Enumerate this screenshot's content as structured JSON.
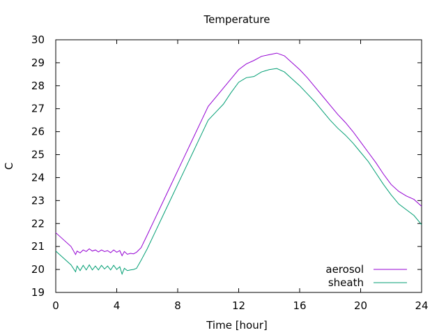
{
  "chart_data": {
    "type": "line",
    "title": "Temperature",
    "xlabel": "Time [hour]",
    "ylabel": "C",
    "xlim": [
      0,
      24
    ],
    "ylim": [
      19,
      30
    ],
    "xticks": [
      0,
      4,
      8,
      12,
      16,
      20,
      24
    ],
    "yticks": [
      19,
      20,
      21,
      22,
      23,
      24,
      25,
      26,
      27,
      28,
      29,
      30
    ],
    "grid": false,
    "legend_position": "bottom-right",
    "series": [
      {
        "name": "aerosol",
        "color": "#9400d3",
        "x": [
          0,
          0.5,
          1,
          1.3,
          1.4,
          1.6,
          1.8,
          2.0,
          2.2,
          2.4,
          2.6,
          2.8,
          3.0,
          3.2,
          3.4,
          3.6,
          3.8,
          4.0,
          4.2,
          4.35,
          4.5,
          4.7,
          4.9,
          5.1,
          5.3,
          5.6,
          6.0,
          6.5,
          7.0,
          7.5,
          8.0,
          8.5,
          9.0,
          9.5,
          10.0,
          10.5,
          11.0,
          11.5,
          12.0,
          12.5,
          13.0,
          13.5,
          14.0,
          14.5,
          15.0,
          15.5,
          16.0,
          16.5,
          17.0,
          17.5,
          18.0,
          18.5,
          19.0,
          19.5,
          20.0,
          20.5,
          21.0,
          21.5,
          22.0,
          22.5,
          23.0,
          23.5,
          24.0
        ],
        "y": [
          21.6,
          21.3,
          21.0,
          20.65,
          20.8,
          20.72,
          20.85,
          20.78,
          20.9,
          20.8,
          20.85,
          20.76,
          20.85,
          20.78,
          20.82,
          20.73,
          20.85,
          20.75,
          20.82,
          20.6,
          20.78,
          20.66,
          20.7,
          20.68,
          20.75,
          20.95,
          21.5,
          22.2,
          22.9,
          23.6,
          24.3,
          25.0,
          25.7,
          26.4,
          27.1,
          27.5,
          27.9,
          28.3,
          28.7,
          28.95,
          29.1,
          29.28,
          29.35,
          29.42,
          29.3,
          29.0,
          28.7,
          28.35,
          27.95,
          27.55,
          27.15,
          26.75,
          26.4,
          26.0,
          25.55,
          25.1,
          24.65,
          24.15,
          23.7,
          23.4,
          23.2,
          23.05,
          22.75
        ]
      },
      {
        "name": "sheath",
        "color": "#009e73",
        "x": [
          0,
          0.5,
          1,
          1.3,
          1.4,
          1.6,
          1.8,
          2.0,
          2.2,
          2.4,
          2.6,
          2.8,
          3.0,
          3.2,
          3.4,
          3.6,
          3.8,
          4.0,
          4.2,
          4.35,
          4.5,
          4.7,
          4.9,
          5.1,
          5.3,
          5.6,
          6.0,
          6.5,
          7.0,
          7.5,
          8.0,
          8.5,
          9.0,
          9.5,
          10.0,
          10.5,
          11.0,
          11.5,
          12.0,
          12.5,
          13.0,
          13.5,
          14.0,
          14.5,
          15.0,
          15.5,
          16.0,
          16.5,
          17.0,
          17.5,
          18.0,
          18.5,
          19.0,
          19.5,
          20.0,
          20.5,
          21.0,
          21.5,
          22.0,
          22.5,
          23.0,
          23.5,
          24.0
        ],
        "y": [
          20.8,
          20.5,
          20.2,
          19.9,
          20.15,
          19.95,
          20.18,
          19.98,
          20.2,
          19.98,
          20.15,
          19.98,
          20.18,
          20.02,
          20.15,
          19.98,
          20.18,
          20.0,
          20.12,
          19.8,
          20.05,
          19.95,
          19.98,
          20.0,
          20.05,
          20.4,
          20.9,
          21.6,
          22.3,
          23.0,
          23.7,
          24.4,
          25.1,
          25.8,
          26.5,
          26.85,
          27.2,
          27.7,
          28.15,
          28.35,
          28.4,
          28.6,
          28.7,
          28.75,
          28.6,
          28.3,
          28.0,
          27.65,
          27.3,
          26.9,
          26.5,
          26.15,
          25.85,
          25.5,
          25.1,
          24.7,
          24.2,
          23.7,
          23.25,
          22.85,
          22.6,
          22.35,
          21.95
        ]
      }
    ]
  }
}
